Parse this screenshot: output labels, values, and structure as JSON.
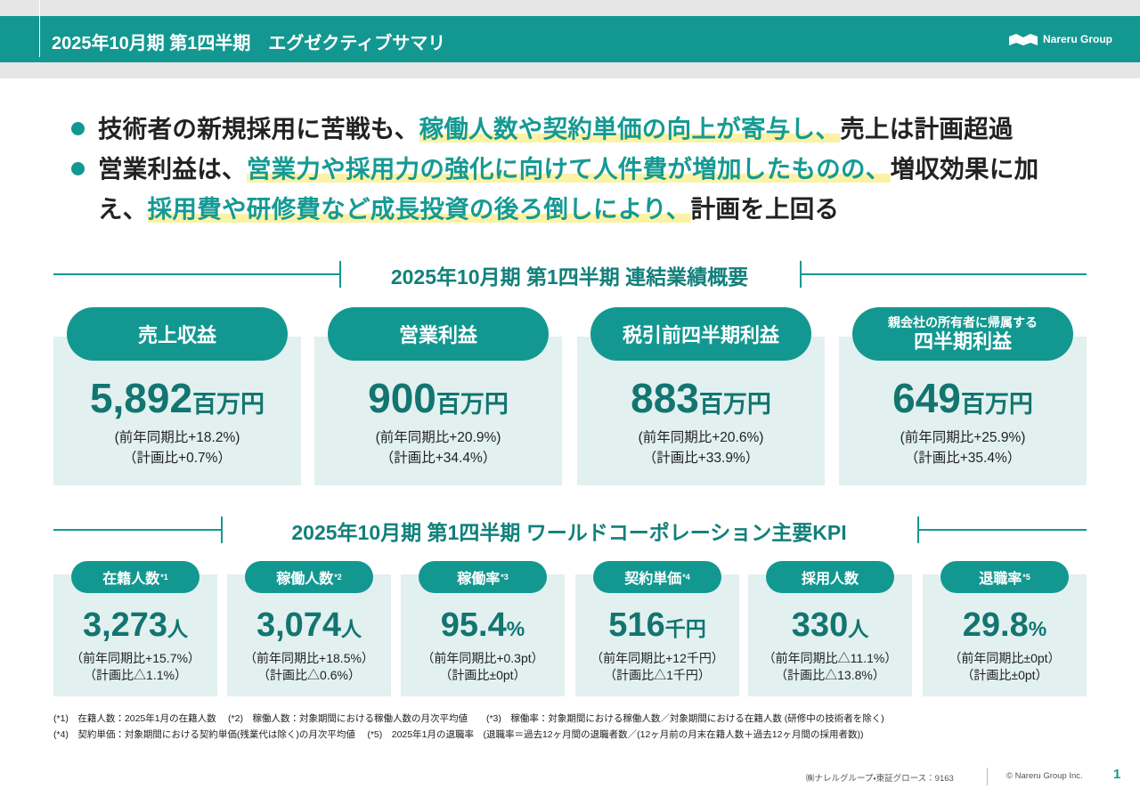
{
  "header": {
    "title": "2025年10月期 第1四半期　エグゼクティブサマリ",
    "logo": "Nareru Group"
  },
  "bullets": [
    [
      "技術者の新規採用に苦戦も、",
      "稼働人数や契約単価の向上が寄与し、",
      "売上は計画超過"
    ],
    [
      "営業利益は、",
      "営業力や採用力の強化に向けて人件費が増加したものの、",
      "増収効果に加え、",
      "採用費や研修費など成長投資の後ろ倒しにより、",
      "計画を上回る"
    ]
  ],
  "results": {
    "title": "2025年10月期 第1四半期 連結業績概要",
    "cards": [
      {
        "label": "売上収益",
        "value": "5,892",
        "unit": "百万円",
        "yoy": "(前年同期比+18.2%)",
        "plan": "（計画比+0.7%）"
      },
      {
        "label": "営業利益",
        "value": "900",
        "unit": "百万円",
        "yoy": "(前年同期比+20.9%)",
        "plan": "（計画比+34.4%）"
      },
      {
        "label": "税引前四半期利益",
        "value": "883",
        "unit": "百万円",
        "yoy": "(前年同期比+20.6%)",
        "plan": "（計画比+33.9%）"
      },
      {
        "sublabel": "親会社の所有者に帰属する",
        "label": "四半期利益",
        "value": "649",
        "unit": "百万円",
        "yoy": "(前年同期比+25.9%)",
        "plan": "（計画比+35.4%）"
      }
    ]
  },
  "kpi": {
    "title": "2025年10月期 第1四半期 ワールドコーポレーション主要KPI",
    "cards": [
      {
        "label": "在籍人数",
        "note": "*1",
        "value": "3,273",
        "unit": "人",
        "yoy": "（前年同期比+15.7%）",
        "plan": "（計画比△1.1%）"
      },
      {
        "label": "稼働人数",
        "note": "*2",
        "value": "3,074",
        "unit": "人",
        "yoy": "（前年同期比+18.5%）",
        "plan": "（計画比△0.6%）"
      },
      {
        "label": "稼働率",
        "note": "*3",
        "value": "95.4",
        "unit": "%",
        "yoy": "（前年同期比+0.3pt）",
        "plan": "（計画比±0pt）"
      },
      {
        "label": "契約単価",
        "note": "*4",
        "value": "516",
        "unit": "千円",
        "yoy": "（前年同期比+12千円）",
        "plan": "（計画比△1千円）"
      },
      {
        "label": "採用人数",
        "value": "330",
        "unit": "人",
        "yoy": "（前年同期比△11.1%）",
        "plan": "（計画比△13.8%）"
      },
      {
        "label": "退職率",
        "note": "*5",
        "value": "29.8",
        "unit": "%",
        "yoy": "（前年同期比±0pt）",
        "plan": "（計画比±0pt）"
      }
    ]
  },
  "footnotes": [
    "(*1)　在籍人数：2025年1月の在籍人数　 (*2)　稼働人数：対象期間における稼働人数の月次平均値　　(*3)　稼働率：対象期間における稼働人数／対象期間における在籍人数 (研修中の技術者を除く)",
    "(*4)　契約単価：対象期間における契約単価(残業代は除く)の月次平均値　 (*5)　2025年1月の退職率　(退職率＝過去12ヶ月間の退職者数／(12ヶ月前の月末在籍人数＋過去12ヶ月間の採用者数))"
  ],
  "footer": {
    "company": "㈱ナレルグループ・東証グロース：9163",
    "copyright": "© Nareru Group Inc.",
    "page": "1"
  }
}
